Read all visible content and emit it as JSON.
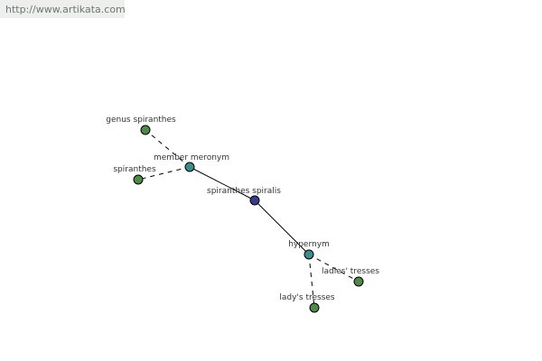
{
  "site_url": "http://www.artikata.com",
  "colors": {
    "synset": "#3b3b8c",
    "relation": "#3f8c8c",
    "term": "#4f8a4b",
    "edge": "#000000"
  },
  "nodes": [
    {
      "id": "center",
      "label": "spiranthes spiralis",
      "type": "synset"
    },
    {
      "id": "member",
      "label": "member meronym",
      "type": "relation"
    },
    {
      "id": "genus",
      "label": "genus spiranthes",
      "type": "term"
    },
    {
      "id": "spir",
      "label": "spiranthes",
      "type": "term"
    },
    {
      "id": "hyper",
      "label": "hypernym",
      "type": "relation"
    },
    {
      "id": "ladies",
      "label": "ladies' tresses",
      "type": "term"
    },
    {
      "id": "ladys",
      "label": "lady's tresses",
      "type": "term"
    }
  ],
  "edges": [
    {
      "from": "center",
      "to": "member",
      "style": "solid"
    },
    {
      "from": "center",
      "to": "hyper",
      "style": "solid"
    },
    {
      "from": "member",
      "to": "genus",
      "style": "dashed"
    },
    {
      "from": "member",
      "to": "spir",
      "style": "dashed"
    },
    {
      "from": "hyper",
      "to": "ladies",
      "style": "dashed"
    },
    {
      "from": "hyper",
      "to": "ladys",
      "style": "dashed"
    }
  ]
}
